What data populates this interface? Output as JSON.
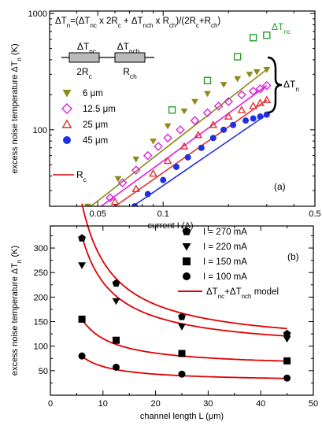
{
  "chart_data": [
    {
      "type": "scatter",
      "panel": "(a)",
      "xscale": "log",
      "yscale": "log",
      "xlim": [
        0.03,
        0.5
      ],
      "ylim": [
        22,
        1050
      ],
      "xlabel": "current I (A)",
      "ylabel": "excess noise temperature ΔT",
      "ylabel_sub": "n",
      "ylabel_unit": " (K)",
      "xticks": [
        {
          "v": 0.05,
          "label": "0.05"
        },
        {
          "v": 0.1,
          "label": "0.1"
        },
        {
          "v": 0.5,
          "label": "0.5"
        }
      ],
      "yticks": [
        {
          "v": 100,
          "label": "100"
        },
        {
          "v": 1000,
          "label": "1000"
        }
      ],
      "formula": "ΔTn=(ΔTnc x 2Rc + ΔTnch x Rch)/(2Rc+Rch)",
      "circuit_labels": {
        "tnc": "ΔTnc",
        "tnch": "ΔTnch",
        "rc": "2Rc",
        "rch": "Rch"
      },
      "rc_label": "Rc",
      "tnc_label": "ΔTnc",
      "tn_label": "ΔTn",
      "series": [
        {
          "name": "6 μm",
          "marker": "tri-down",
          "color": "#8b8b1a",
          "x": [
            0.045,
            0.062,
            0.075,
            0.09,
            0.105,
            0.125,
            0.14,
            0.16,
            0.19,
            0.22,
            0.25,
            0.27,
            0.3
          ],
          "y": [
            22,
            38,
            56,
            80,
            108,
            145,
            175,
            205,
            245,
            275,
            300,
            315,
            330
          ]
        },
        {
          "name": "12.5 μm",
          "marker": "diamond",
          "color": "#e020e0",
          "x": [
            0.057,
            0.065,
            0.075,
            0.085,
            0.095,
            0.105,
            0.12,
            0.14,
            0.16,
            0.18,
            0.2,
            0.23,
            0.26,
            0.28,
            0.3
          ],
          "y": [
            26,
            35,
            45,
            60,
            72,
            85,
            100,
            120,
            140,
            160,
            175,
            200,
            215,
            225,
            240
          ]
        },
        {
          "name": "25 μm",
          "marker": "tri-up",
          "color": "#e03030",
          "x": [
            0.06,
            0.075,
            0.09,
            0.105,
            0.125,
            0.145,
            0.17,
            0.2,
            0.23,
            0.26,
            0.28,
            0.3
          ],
          "y": [
            24,
            31,
            42,
            54,
            72,
            90,
            110,
            130,
            148,
            160,
            170,
            180
          ]
        },
        {
          "name": "45 μm",
          "marker": "circle",
          "color": "#2030e0",
          "x": [
            0.074,
            0.085,
            0.1,
            0.115,
            0.13,
            0.15,
            0.17,
            0.19,
            0.21,
            0.24,
            0.26,
            0.28,
            0.3
          ],
          "y": [
            22,
            28,
            37,
            48,
            58,
            70,
            85,
            100,
            110,
            120,
            125,
            130,
            135
          ]
        },
        {
          "name": "ΔTnc",
          "marker": "square-open",
          "color": "#2a9d2a",
          "x": [
            0.11,
            0.16,
            0.22,
            0.26,
            0.3
          ],
          "y": [
            148,
            265,
            425,
            620,
            650
          ]
        }
      ],
      "fits": [
        {
          "series": "6 μm",
          "color": "#8b8b1a",
          "x": [
            0.045,
            0.3
          ],
          "y": [
            21,
            330
          ]
        },
        {
          "series": "12.5 μm",
          "color": "#e020e0",
          "x": [
            0.05,
            0.3
          ],
          "y": [
            21,
            240
          ]
        },
        {
          "series": "25 μm",
          "color": "#e03030",
          "x": [
            0.058,
            0.3
          ],
          "y": [
            21,
            180
          ]
        },
        {
          "series": "45 μm",
          "color": "#2030e0",
          "x": [
            0.07,
            0.3
          ],
          "y": [
            21,
            135
          ]
        }
      ]
    },
    {
      "type": "scatter",
      "panel": "(b)",
      "xlim": [
        0,
        50
      ],
      "ylim": [
        0,
        345
      ],
      "xlabel": "channel length L (μm)",
      "ylabel": "excess noise temperature ΔT",
      "ylabel_sub": "n",
      "ylabel_unit": " (K)",
      "xticks": [
        0,
        10,
        20,
        30,
        40,
        50
      ],
      "yticks": [
        50,
        100,
        150,
        200,
        250,
        300
      ],
      "model_label": "ΔTnc+ΔTnch model",
      "series": [
        {
          "name": "I = 270 mA",
          "marker": "pentagon",
          "x": [
            6,
            12.5,
            25,
            45
          ],
          "y": [
            320,
            228,
            160,
            125
          ]
        },
        {
          "name": "I = 220 mA",
          "marker": "tri-down",
          "x": [
            6,
            12.5,
            25,
            45
          ],
          "y": [
            265,
            192,
            140,
            115
          ]
        },
        {
          "name": "I = 150 mA",
          "marker": "square",
          "x": [
            6,
            12.5,
            25,
            45
          ],
          "y": [
            155,
            112,
            85,
            70
          ]
        },
        {
          "name": "I = 100 mA",
          "marker": "circle",
          "x": [
            6,
            12.5,
            25,
            45
          ],
          "y": [
            80,
            57,
            43,
            35
          ]
        }
      ],
      "model_curves": [
        {
          "a": 96.6,
          "b": 1763
        },
        {
          "a": 89.2,
          "b": 1411
        },
        {
          "a": 56.3,
          "b": 591
        },
        {
          "a": 27.3,
          "b": 312
        }
      ],
      "model_color": "#e00000"
    }
  ]
}
